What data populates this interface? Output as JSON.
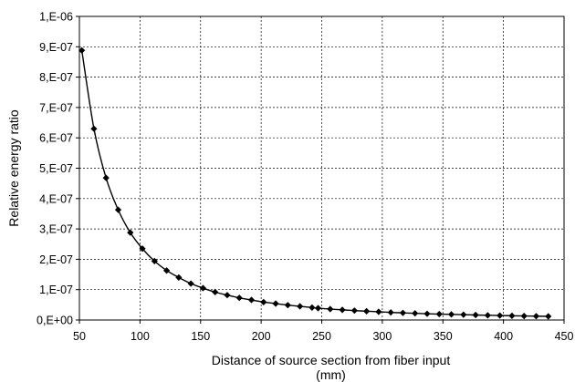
{
  "chart_data": {
    "type": "scatter",
    "title": "",
    "xlabel": "Distance of source section from fiber input",
    "xlabel_unit": "(mm)",
    "ylabel": "Relative energy ratio",
    "xlim": [
      50,
      450
    ],
    "ylim": [
      0,
      1e-06
    ],
    "x_ticks": [
      50,
      100,
      150,
      200,
      250,
      300,
      350,
      400,
      450
    ],
    "x_tick_labels": [
      "50",
      "100",
      "150",
      "200",
      "250",
      "300",
      "350",
      "400",
      "450"
    ],
    "y_ticks": [
      0,
      1e-07,
      2e-07,
      3e-07,
      4e-07,
      5e-07,
      6e-07,
      7e-07,
      8e-07,
      9e-07,
      1e-06
    ],
    "y_tick_labels": [
      "0,E+00",
      "1,E-07",
      "2,E-07",
      "3,E-07",
      "4,E-07",
      "5,E-07",
      "6,E-07",
      "7,E-07",
      "8,E-07",
      "9,E-07",
      "1,E-06"
    ],
    "grid": true,
    "marker": "diamond",
    "line": "smooth",
    "series": [
      {
        "color": "#000000",
        "x": [
          52,
          62,
          72,
          82,
          92,
          102,
          112,
          122,
          132,
          142,
          152,
          162,
          172,
          182,
          192,
          202,
          212,
          222,
          232,
          242,
          247,
          257,
          267,
          277,
          287,
          297,
          307,
          317,
          327,
          337,
          347,
          357,
          367,
          377,
          387,
          397,
          407,
          417,
          427,
          437
        ],
        "y": [
          8.88e-07,
          6.3e-07,
          4.68e-07,
          3.63e-07,
          2.88e-07,
          2.35e-07,
          1.94e-07,
          1.63e-07,
          1.4e-07,
          1.2e-07,
          1.05e-07,
          9.2e-08,
          8.2e-08,
          7.3e-08,
          6.6e-08,
          5.9e-08,
          5.4e-08,
          4.9e-08,
          4.5e-08,
          4.1e-08,
          3.9e-08,
          3.6e-08,
          3.35e-08,
          3.1e-08,
          2.9e-08,
          2.7e-08,
          2.5e-08,
          2.35e-08,
          2.2e-08,
          2.05e-08,
          1.95e-08,
          1.85e-08,
          1.75e-08,
          1.65e-08,
          1.55e-08,
          1.48e-08,
          1.4e-08,
          1.32e-08,
          1.26e-08,
          1.2e-08
        ]
      }
    ]
  }
}
